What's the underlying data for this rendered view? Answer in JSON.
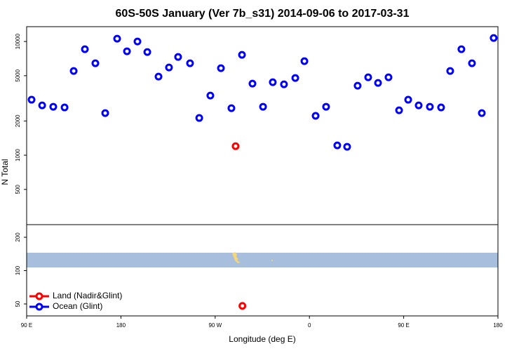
{
  "chart_data": [
    {
      "type": "scatter",
      "title": "60S-50S January (Ver 7b_s31)   2014-09-06 to 2017-03-31",
      "ylabel": "N Total",
      "log_y": true,
      "ylim": [
        245,
        13500
      ],
      "yticks": [
        500,
        1000,
        2000,
        5000,
        10000
      ],
      "xlim": [
        90,
        540
      ],
      "legend": "lower left",
      "series": [
        {
          "name": "Land (Nadir&Glint)",
          "color": "#ff0000",
          "x": [
            289.5
          ],
          "values": [
            1200
          ]
        },
        {
          "name": "Ocean (Glint)",
          "color": "#0000ff",
          "x": [
            94.7,
            104.8,
            115.4,
            126.2,
            134.9,
            145.6,
            155.6,
            165,
            176.4,
            185.8,
            195.8,
            205.2,
            215.9,
            225.9,
            234.6,
            246,
            254.8,
            265.4,
            275.5,
            285.5,
            295.6,
            305.6,
            315.7,
            325,
            335.7,
            346.5,
            355.2,
            365.9,
            375.9,
            386.6,
            396,
            406,
            416.1,
            425.5,
            435.5,
            445.6,
            454.3,
            464.3,
            475,
            485.7,
            494.4,
            505.1,
            515.2,
            524.6,
            535.9
          ],
          "values": [
            3075,
            2743,
            2667,
            2630,
            5505,
            8550,
            6436,
            2346,
            10590,
            8200,
            10000,
            8080,
            4912,
            5912,
            7316,
            6436,
            2125,
            3347,
            5824,
            2592,
            7630,
            4262,
            2667,
            4383,
            4203,
            4773,
            6718,
            2218,
            2667,
            1220,
            1186,
            4085,
            4842,
            4322,
            4842,
            2483,
            3075,
            2743,
            2667,
            2630,
            5505,
            8550,
            6436,
            2346,
            10740
          ]
        }
      ]
    },
    {
      "type": "scatter",
      "log_y": true,
      "ylim": [
        39,
        260
      ],
      "yticks": [
        50,
        100,
        200
      ],
      "xlim": [
        90,
        540
      ],
      "xlabel": "Longitude (deg E)",
      "xticks": [
        {
          "value": 90,
          "label": "90 E"
        },
        180,
        {
          "value": 270,
          "label": "90 W"
        },
        {
          "value": 360,
          "label": "0"
        },
        {
          "value": 450,
          "label": "90 E"
        },
        {
          "value": 540,
          "label": "180"
        }
      ],
      "series": [
        {
          "color": "#ff0000",
          "x": [
            296
          ],
          "values": [
            48
          ]
        }
      ]
    }
  ]
}
